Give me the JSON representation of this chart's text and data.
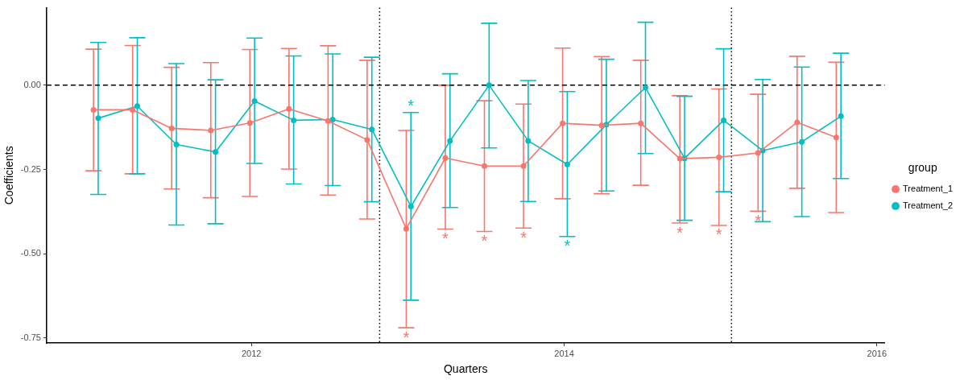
{
  "chart_data": {
    "type": "line",
    "xlabel": "Quarters",
    "ylabel": "Coefficients",
    "legend_title": "group",
    "legend": "right",
    "marker": "circle",
    "line_style": "solid",
    "grid": false,
    "xlim": [
      2010.69,
      2016.05
    ],
    "xticks": [
      2012,
      2014,
      2016
    ],
    "ylim": [
      -0.765,
      0.23
    ],
    "yticks": [
      {
        "value": -0.75,
        "label": "-0.75"
      },
      {
        "value": -0.5,
        "label": "-0.50"
      },
      {
        "value": -0.25,
        "label": "-0.25"
      },
      {
        "value": 0,
        "label": "0.00"
      }
    ],
    "series": [
      {
        "name": "Treatment_1",
        "color": "#f8766d",
        "x": [
          2010.99,
          2011.24,
          2011.49,
          2011.74,
          2011.99,
          2012.24,
          2012.49,
          2012.74,
          2012.99,
          2013.24,
          2013.49,
          2013.74,
          2013.99,
          2014.24,
          2014.49,
          2014.74,
          2014.99,
          2015.24,
          2015.49,
          2015.74
        ],
        "values": [
          -0.073,
          -0.073,
          -0.128,
          -0.134,
          -0.112,
          -0.07,
          -0.106,
          -0.162,
          -0.426,
          -0.216,
          -0.24,
          -0.24,
          -0.113,
          -0.119,
          -0.113,
          -0.218,
          -0.214,
          -0.201,
          -0.11,
          -0.155
        ],
        "errors": [
          [
            -0.254,
            0.107
          ],
          [
            -0.263,
            0.118
          ],
          [
            -0.308,
            0.053
          ],
          [
            -0.334,
            0.067
          ],
          [
            -0.33,
            0.106
          ],
          [
            -0.249,
            0.109
          ],
          [
            -0.326,
            0.117
          ],
          [
            -0.397,
            0.074
          ],
          [
            -0.72,
            -0.134
          ],
          [
            -0.427,
            0.0
          ],
          [
            -0.434,
            -0.046
          ],
          [
            -0.424,
            -0.056
          ],
          [
            -0.337,
            0.11
          ],
          [
            -0.322,
            0.085
          ],
          [
            -0.297,
            0.074
          ],
          [
            -0.409,
            -0.031
          ],
          [
            -0.416,
            -0.011
          ],
          [
            -0.374,
            -0.027
          ],
          [
            -0.306,
            0.086
          ],
          [
            -0.378,
            0.068
          ]
        ]
      },
      {
        "name": "Treatment_2",
        "color": "#00bfc4",
        "x": [
          2011.02,
          2011.27,
          2011.52,
          2011.77,
          2012.02,
          2012.27,
          2012.52,
          2012.77,
          2013.02,
          2013.27,
          2013.52,
          2013.77,
          2014.02,
          2014.27,
          2014.52,
          2014.77,
          2015.02,
          2015.27,
          2015.52,
          2015.77
        ],
        "values": [
          -0.098,
          -0.062,
          -0.176,
          -0.198,
          -0.047,
          -0.104,
          -0.102,
          -0.131,
          -0.36,
          -0.165,
          0.0,
          -0.165,
          -0.235,
          -0.117,
          -0.007,
          -0.217,
          -0.104,
          -0.194,
          -0.168,
          -0.092
        ],
        "errors": [
          [
            -0.324,
            0.127
          ],
          [
            -0.263,
            0.141
          ],
          [
            -0.415,
            0.064
          ],
          [
            -0.411,
            0.016
          ],
          [
            -0.232,
            0.14
          ],
          [
            -0.293,
            0.087
          ],
          [
            -0.298,
            0.093
          ],
          [
            -0.346,
            0.083
          ],
          [
            -0.638,
            -0.081
          ],
          [
            -0.363,
            0.034
          ],
          [
            -0.186,
            0.184
          ],
          [
            -0.345,
            0.014
          ],
          [
            -0.449,
            -0.019
          ],
          [
            -0.314,
            0.077
          ],
          [
            -0.203,
            0.187
          ],
          [
            -0.401,
            -0.033
          ],
          [
            -0.316,
            0.108
          ],
          [
            -0.405,
            0.017
          ],
          [
            -0.39,
            0.054
          ],
          [
            -0.277,
            0.095
          ]
        ]
      }
    ],
    "ref_lines": [
      {
        "axis": "y",
        "value": 0,
        "line_style": "dashed",
        "color": "#000000"
      },
      {
        "axis": "x",
        "value": 2012.82,
        "line_style": "dotted",
        "color": "#000000"
      },
      {
        "axis": "x",
        "value": 2015.07,
        "line_style": "dotted",
        "color": "#000000"
      }
    ],
    "annotations": [
      {
        "text": "*",
        "x": 2012.99,
        "y": -0.72
      },
      {
        "text": "*",
        "x": 2013.02,
        "y": -0.081
      },
      {
        "text": "*",
        "x": 2013.24,
        "y": -0.427
      },
      {
        "text": "*",
        "x": 2013.49,
        "y": -0.434
      },
      {
        "text": "*",
        "x": 2013.74,
        "y": -0.424
      },
      {
        "text": "*",
        "x": 2014.02,
        "y": -0.449
      },
      {
        "text": "*",
        "x": 2014.74,
        "y": -0.409
      },
      {
        "text": "*",
        "x": 2014.99,
        "y": -0.416
      },
      {
        "text": "*",
        "x": 2015.24,
        "y": -0.374
      }
    ]
  }
}
